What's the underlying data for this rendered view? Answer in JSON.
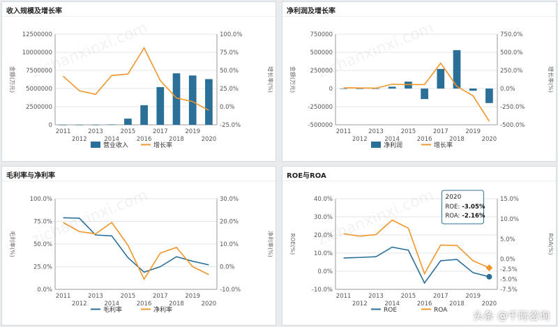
{
  "panels": [
    {
      "title": "收入规模及增长率"
    },
    {
      "title": "净利润及增长率"
    },
    {
      "title": "毛利率与净利率"
    },
    {
      "title": "ROE与ROA"
    }
  ],
  "brand": "头条 @千际咨询",
  "chart_data": [
    {
      "type": "bar",
      "title": "收入规模及增长率",
      "categories": [
        "2011",
        "2012",
        "2013",
        "2014",
        "2015",
        "2016",
        "2017",
        "2018",
        "2019",
        "2020"
      ],
      "ylabel": "金额(万元)",
      "y2label": "增长率(%)",
      "ylim": [
        0,
        12500000
      ],
      "yticks": [
        "12500000",
        "10000000",
        "7500000",
        "5000000",
        "2500000",
        "0"
      ],
      "y2lim": [
        -25,
        100
      ],
      "y2ticks": [
        "100.0%",
        "75.0%",
        "50.0%",
        "25.0%",
        "0.0%",
        "-25.0%"
      ],
      "series": [
        {
          "name": "营业收入",
          "kind": "bar",
          "axis": "left",
          "color": "#2a6f97",
          "values": [
            0,
            0,
            0,
            50000,
            850000,
            2700000,
            5200000,
            7100000,
            6800000,
            6300000
          ]
        },
        {
          "name": "增长率",
          "kind": "line",
          "axis": "right",
          "color": "#f0952a",
          "values": [
            42,
            22,
            17,
            43,
            45,
            81,
            36,
            12,
            7,
            -5
          ]
        }
      ],
      "legend": "bottom"
    },
    {
      "type": "bar",
      "title": "净利润及增长率",
      "categories": [
        "2011",
        "2012",
        "2013",
        "2014",
        "2015",
        "2016",
        "2017",
        "2018",
        "2019",
        "2020"
      ],
      "ylabel": "金额(万元)",
      "y2label": "增长率(%)",
      "ylim": [
        -500000,
        750000
      ],
      "yticks": [
        "750000",
        "500000",
        "250000",
        "0",
        "-250000",
        "-500000"
      ],
      "y2lim": [
        -500,
        750
      ],
      "y2ticks": [
        "750.0%",
        "500.0%",
        "250.0%",
        "0.0%",
        "-250.0%",
        "-500.0%"
      ],
      "series": [
        {
          "name": "净利润",
          "kind": "bar",
          "axis": "left",
          "color": "#2a6f97",
          "values": [
            0,
            0,
            0,
            25000,
            95000,
            -145000,
            270000,
            530000,
            -30000,
            -200000
          ]
        },
        {
          "name": "增长率",
          "kind": "line",
          "axis": "right",
          "color": "#f0952a",
          "values": [
            10,
            8,
            5,
            60,
            55,
            55,
            350,
            30,
            -100,
            -450
          ]
        }
      ],
      "legend": "bottom"
    },
    {
      "type": "line",
      "title": "毛利率与净利率",
      "categories": [
        "2011",
        "2012",
        "2013",
        "2014",
        "2015",
        "2016",
        "2017",
        "2018",
        "2019",
        "2020"
      ],
      "ylabel": "毛利率(%)",
      "y2label": "净利率(%)",
      "ylim": [
        0,
        100
      ],
      "yticks": [
        "100.0%",
        "75.0%",
        "50.0%",
        "25.0%",
        "0.0%"
      ],
      "y2lim": [
        -10,
        30
      ],
      "y2ticks": [
        "30.0%",
        "20.0%",
        "10.0%",
        "0.0%",
        "-10.0%"
      ],
      "series": [
        {
          "name": "毛利率",
          "kind": "line",
          "axis": "left",
          "color": "#2a6f97",
          "values": [
            79,
            78.5,
            60,
            59,
            35,
            19,
            25,
            36,
            31,
            27
          ]
        },
        {
          "name": "净利率",
          "kind": "line",
          "axis": "right",
          "color": "#f0952a",
          "values": [
            19.5,
            15.5,
            14.5,
            19.5,
            9.5,
            -5.5,
            6,
            8.5,
            0,
            -3.5
          ]
        }
      ],
      "legend": "bottom"
    },
    {
      "type": "line",
      "title": "ROE与ROA",
      "categories": [
        "2011",
        "2012",
        "2013",
        "2014",
        "2015",
        "2016",
        "2017",
        "2018",
        "2019",
        "2020"
      ],
      "ylabel": "ROE(%)",
      "y2label": "ROA(%)",
      "ylim": [
        -10,
        40
      ],
      "yticks": [
        "40.0%",
        "30.0%",
        "20.0%",
        "10.0%",
        "0.0%",
        "-10.0%"
      ],
      "y2lim": [
        -7.5,
        15
      ],
      "y2ticks": [
        "15.0%",
        "10.0%",
        "5.0%",
        "0.0%",
        "-2.5%",
        "-5.0%",
        "-7.5%"
      ],
      "y2tick_values": [
        15,
        10,
        5,
        0,
        -2.5,
        -5,
        -7.5
      ],
      "series": [
        {
          "name": "ROE",
          "kind": "line",
          "axis": "left",
          "color": "#2a6f97",
          "values": [
            7.3,
            7.6,
            8,
            13.3,
            11.6,
            -6.5,
            5.8,
            6.5,
            -0.8,
            -3.05
          ]
        },
        {
          "name": "ROA",
          "kind": "line",
          "axis": "right",
          "color": "#f0952a",
          "values": [
            6.3,
            5.7,
            6.1,
            9.7,
            7.7,
            -3.6,
            3.5,
            3.4,
            -0.4,
            -2.16
          ]
        }
      ],
      "legend": "bottom",
      "tooltip": {
        "title": "2020",
        "line1_label": "ROE:",
        "line1_value": "-3.05%",
        "line2_label": "ROA:",
        "line2_value": "-2.16%"
      }
    }
  ]
}
